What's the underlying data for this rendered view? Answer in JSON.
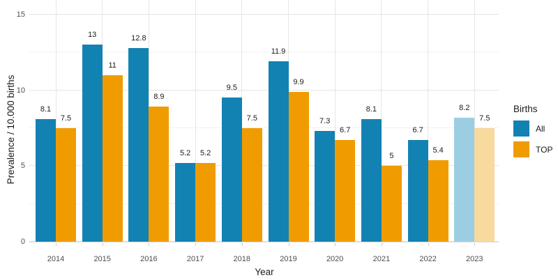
{
  "chart_data": {
    "type": "bar",
    "xlabel": "Year",
    "ylabel": "Prevalence / 10.000 births",
    "categories": [
      "2014",
      "2015",
      "2016",
      "2017",
      "2018",
      "2019",
      "2020",
      "2021",
      "2022",
      "2023"
    ],
    "series": [
      {
        "name": "All",
        "color": "#1282b2",
        "faded_color": "#9ccee3",
        "values": [
          8.1,
          13,
          12.8,
          5.2,
          9.5,
          11.9,
          7.3,
          8.1,
          6.7,
          8.2
        ]
      },
      {
        "name": "TOP",
        "color": "#f09c00",
        "faded_color": "#f8d99e",
        "values": [
          7.5,
          11,
          8.9,
          5.2,
          7.5,
          9.9,
          6.7,
          5,
          5.4,
          7.5
        ]
      }
    ],
    "faded_categories": [
      "2023"
    ],
    "y_ticks": [
      0,
      5,
      10,
      15
    ],
    "y_minor_ticks": [
      2.5,
      7.5,
      12.5
    ],
    "ylim": [
      0,
      16
    ],
    "grid": true,
    "legend": {
      "title": "Births",
      "position": "right"
    }
  }
}
